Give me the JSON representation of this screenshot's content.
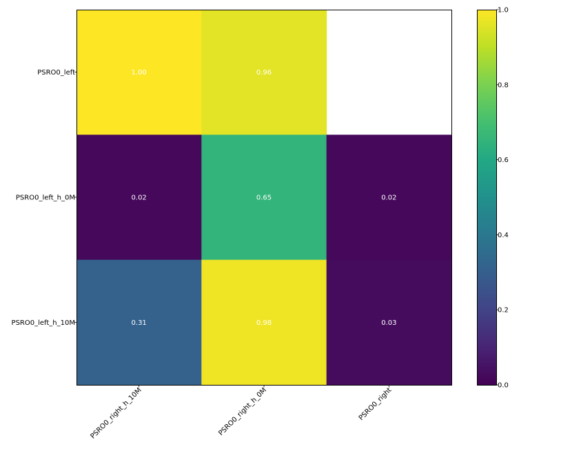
{
  "chart_data": {
    "type": "heatmap",
    "title": "",
    "xlabel": "",
    "ylabel": "",
    "x_categories": [
      "PSRO0_right_h_10M",
      "PSRO0_right_h_0M",
      "PSRO0_right"
    ],
    "y_categories": [
      "PSRO0_left",
      "PSRO0_left_h_0M",
      "PSRO0_left_h_10M"
    ],
    "values": [
      [
        1.0,
        0.96,
        null
      ],
      [
        0.02,
        0.65,
        0.02
      ],
      [
        0.31,
        0.98,
        0.03
      ]
    ],
    "cell_labels": [
      [
        "1.00",
        "0.96",
        ""
      ],
      [
        "0.02",
        "0.65",
        "0.02"
      ],
      [
        "0.31",
        "0.98",
        "0.03"
      ]
    ],
    "colormap": "viridis",
    "colorbar": {
      "range": [
        0.0,
        1.0
      ],
      "ticks": [
        0.0,
        0.2,
        0.4,
        0.6,
        0.8,
        1.0
      ],
      "tick_labels": [
        "0.0",
        "0.2",
        "0.4",
        "0.6",
        "0.8",
        "1.0"
      ]
    },
    "grid": false
  }
}
